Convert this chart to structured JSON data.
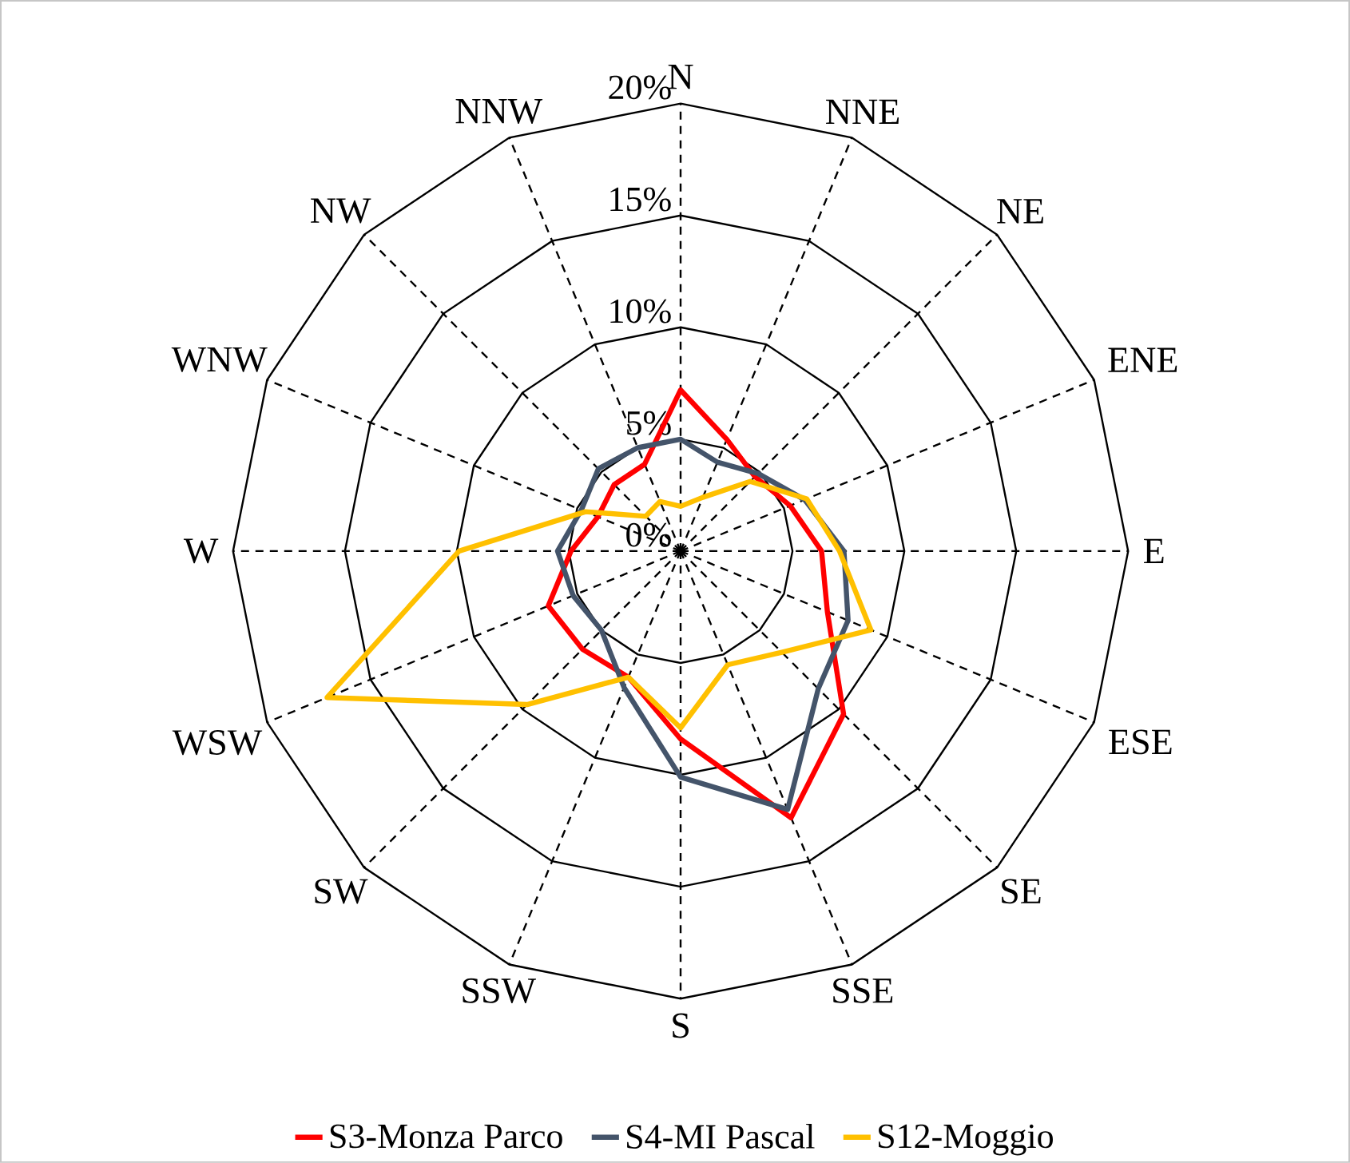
{
  "chart_data": {
    "type": "radar",
    "categories": [
      "N",
      "NNE",
      "NE",
      "ENE",
      "E",
      "ESE",
      "SE",
      "SSE",
      "S",
      "SSW",
      "SW",
      "WSW",
      "W",
      "WNW",
      "NW",
      "NNW"
    ],
    "series": [
      {
        "name": "S3-Monza Parco",
        "color": "#ff0000",
        "values": [
          7.2,
          5.4,
          4.7,
          5.3,
          6.3,
          7.1,
          10.3,
          12.9,
          8.4,
          6.1,
          6.2,
          6.4,
          4.9,
          4.0,
          4.2,
          4.2
        ]
      },
      {
        "name": "S4-MI Pascal",
        "color": "#44546a",
        "values": [
          5.0,
          4.3,
          4.9,
          6.0,
          7.3,
          8.1,
          8.7,
          12.5,
          10.1,
          6.6,
          5.0,
          5.2,
          5.5,
          4.8,
          5.2,
          5.0
        ]
      },
      {
        "name": "S12-Moggio",
        "color": "#ffc000",
        "values": [
          2.0,
          2.6,
          4.4,
          6.1,
          7.1,
          9.2,
          6.4,
          5.5,
          7.9,
          6.1,
          9.7,
          17.1,
          9.9,
          4.6,
          2.2,
          2.4
        ]
      }
    ],
    "ylim": [
      0,
      20
    ],
    "yticks": [
      {
        "value": 0,
        "label": "0%"
      },
      {
        "value": 5,
        "label": "5%"
      },
      {
        "value": 10,
        "label": "10%"
      },
      {
        "value": 15,
        "label": "15%"
      },
      {
        "value": 20,
        "label": "20%"
      }
    ],
    "grid": true,
    "legend": "bottom",
    "line_style": "solid",
    "marker": "none"
  }
}
